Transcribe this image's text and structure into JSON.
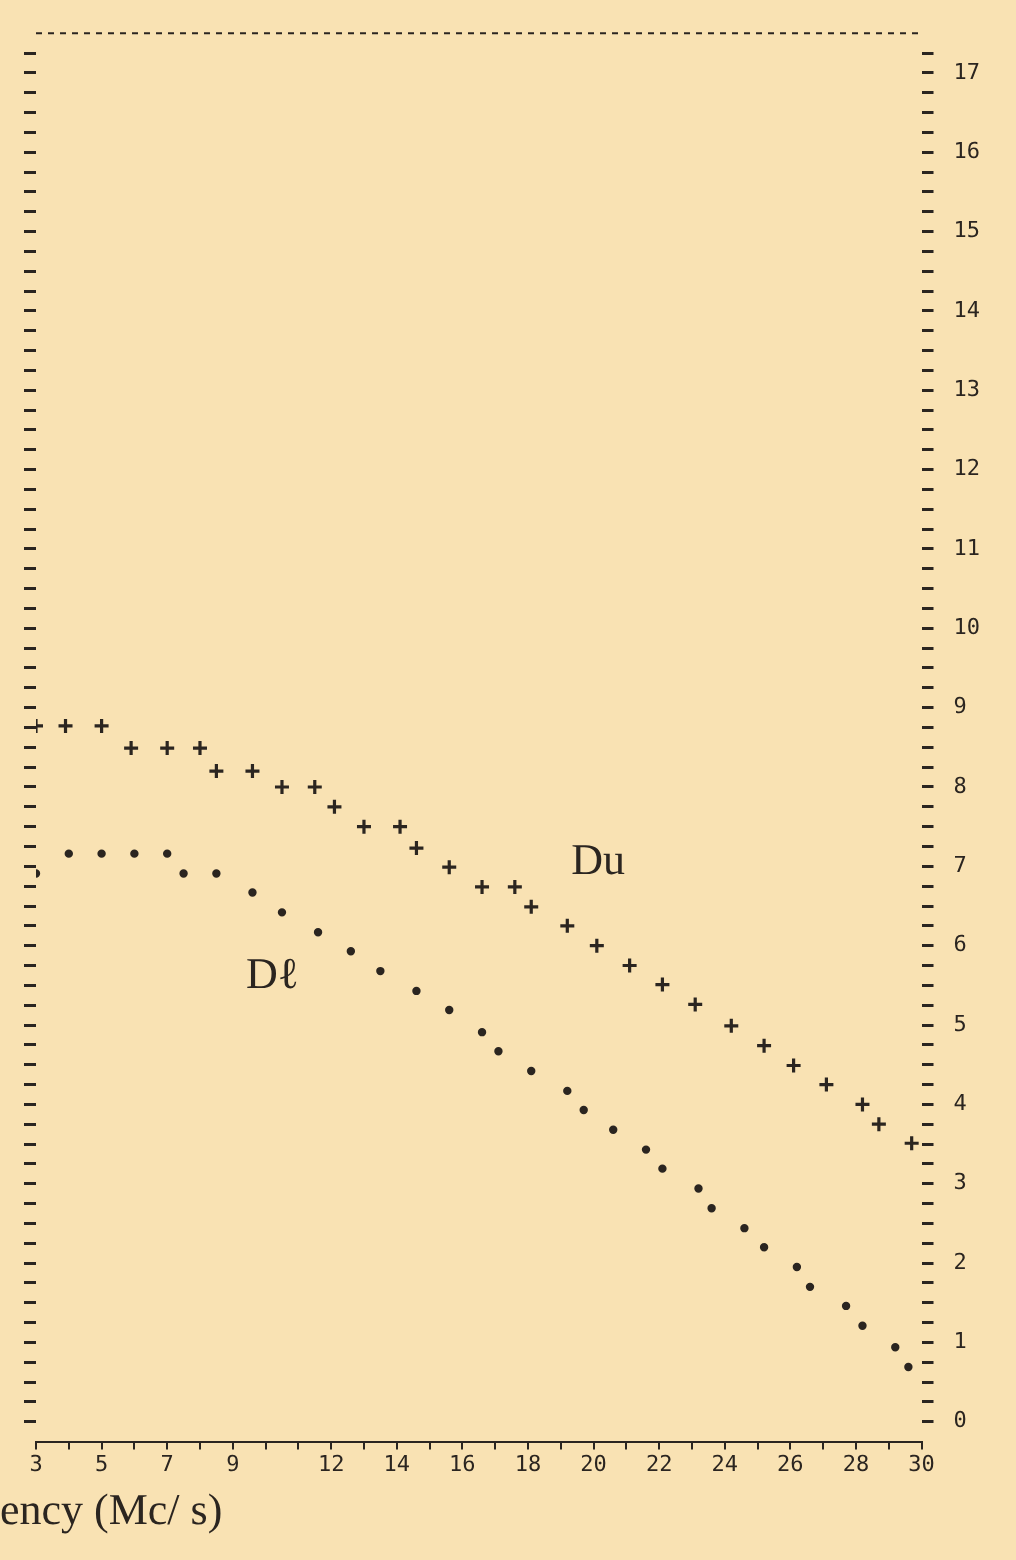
{
  "chart_data": {
    "type": "scatter",
    "xlabel": "ency (Mc/ s)",
    "xlim": [
      3,
      30
    ],
    "ylim": [
      -0.25,
      17.5
    ],
    "xticks": [
      3,
      {
        "value": 4,
        "label": null
      },
      5,
      {
        "value": 6,
        "label": null
      },
      7,
      {
        "value": 8,
        "label": null
      },
      9,
      {
        "value": 10,
        "label": null
      },
      {
        "value": 11,
        "label": null
      },
      12,
      {
        "value": 13,
        "label": null
      },
      14,
      {
        "value": 15,
        "label": null
      },
      16,
      {
        "value": 17,
        "label": null
      },
      18,
      {
        "value": 19,
        "label": null
      },
      20,
      {
        "value": 21,
        "label": null
      },
      22,
      {
        "value": 23,
        "label": null
      },
      24,
      {
        "value": 25,
        "label": null
      },
      26,
      {
        "value": 27,
        "label": null
      },
      28,
      {
        "value": 29,
        "label": null
      },
      30
    ],
    "yticks": [
      0,
      {
        "value": 0.25,
        "label": null
      },
      {
        "value": 0.5,
        "label": null
      },
      {
        "value": 0.75,
        "label": null
      },
      1,
      {
        "value": 1.25,
        "label": null
      },
      {
        "value": 1.5,
        "label": null
      },
      {
        "value": 1.75,
        "label": null
      },
      2,
      {
        "value": 2.25,
        "label": null
      },
      {
        "value": 2.5,
        "label": null
      },
      {
        "value": 2.75,
        "label": null
      },
      3,
      {
        "value": 3.25,
        "label": null
      },
      {
        "value": 3.5,
        "label": null
      },
      {
        "value": 3.75,
        "label": null
      },
      4,
      {
        "value": 4.25,
        "label": null
      },
      {
        "value": 4.5,
        "label": null
      },
      {
        "value": 4.75,
        "label": null
      },
      5,
      {
        "value": 5.25,
        "label": null
      },
      {
        "value": 5.5,
        "label": null
      },
      {
        "value": 5.75,
        "label": null
      },
      6,
      {
        "value": 6.25,
        "label": null
      },
      {
        "value": 6.5,
        "label": null
      },
      {
        "value": 6.75,
        "label": null
      },
      7,
      {
        "value": 7.25,
        "label": null
      },
      {
        "value": 7.5,
        "label": null
      },
      {
        "value": 7.75,
        "label": null
      },
      8,
      {
        "value": 8.25,
        "label": null
      },
      {
        "value": 8.5,
        "label": null
      },
      {
        "value": 8.75,
        "label": null
      },
      9,
      {
        "value": 9.25,
        "label": null
      },
      {
        "value": 9.5,
        "label": null
      },
      {
        "value": 9.75,
        "label": null
      },
      10,
      {
        "value": 10.25,
        "label": null
      },
      {
        "value": 10.5,
        "label": null
      },
      {
        "value": 10.75,
        "label": null
      },
      11,
      {
        "value": 11.25,
        "label": null
      },
      {
        "value": 11.5,
        "label": null
      },
      {
        "value": 11.75,
        "label": null
      },
      12,
      {
        "value": 12.25,
        "label": null
      },
      {
        "value": 12.5,
        "label": null
      },
      {
        "value": 12.75,
        "label": null
      },
      13,
      {
        "value": 13.25,
        "label": null
      },
      {
        "value": 13.5,
        "label": null
      },
      {
        "value": 13.75,
        "label": null
      },
      14,
      {
        "value": 14.25,
        "label": null
      },
      {
        "value": 14.5,
        "label": null
      },
      {
        "value": 14.75,
        "label": null
      },
      15,
      {
        "value": 15.25,
        "label": null
      },
      {
        "value": 15.5,
        "label": null
      },
      {
        "value": 15.75,
        "label": null
      },
      16,
      {
        "value": 16.25,
        "label": null
      },
      {
        "value": 16.5,
        "label": null
      },
      {
        "value": 16.75,
        "label": null
      },
      17,
      {
        "value": 17.25,
        "label": null
      }
    ],
    "grid": false,
    "legend": false,
    "series": [
      {
        "name": "Du",
        "color": "#2b2520",
        "marker": "cross",
        "x": [
          3,
          3.9,
          5,
          5.9,
          7,
          8,
          8.5,
          9.6,
          10.5,
          11.5,
          12.1,
          13,
          14.1,
          14.6,
          15.6,
          16.6,
          17.6,
          18.1,
          19.2,
          20.1,
          21.1,
          22.1,
          23.1,
          24.2,
          25.2,
          26.1,
          27.1,
          28.2,
          28.7,
          29.7
        ],
        "values": [
          8.77,
          8.77,
          8.77,
          8.49,
          8.49,
          8.49,
          8.2,
          8.2,
          8.0,
          8.0,
          7.75,
          7.5,
          7.5,
          7.23,
          6.99,
          6.74,
          6.74,
          6.49,
          6.25,
          6.0,
          5.75,
          5.51,
          5.26,
          4.99,
          4.74,
          4.49,
          4.25,
          4.0,
          3.75,
          3.51
        ]
      },
      {
        "name": "Dℓ",
        "color": "#2b2520",
        "marker": "circle",
        "x": [
          3,
          4,
          5,
          6,
          7,
          7.5,
          8.5,
          9.6,
          10.5,
          11.6,
          12.6,
          13.5,
          14.6,
          15.6,
          16.6,
          17.1,
          18.1,
          19.2,
          19.7,
          20.6,
          21.6,
          22.1,
          23.2,
          23.6,
          24.6,
          25.2,
          26.2,
          26.6,
          27.7,
          28.2,
          29.2,
          29.6
        ],
        "values": [
          6.91,
          7.16,
          7.16,
          7.16,
          7.16,
          6.91,
          6.91,
          6.67,
          6.42,
          6.17,
          5.93,
          5.68,
          5.43,
          5.19,
          4.91,
          4.67,
          4.42,
          4.17,
          3.93,
          3.68,
          3.43,
          3.19,
          2.94,
          2.69,
          2.44,
          2.2,
          1.95,
          1.7,
          1.46,
          1.21,
          0.94,
          0.69
        ]
      }
    ]
  }
}
